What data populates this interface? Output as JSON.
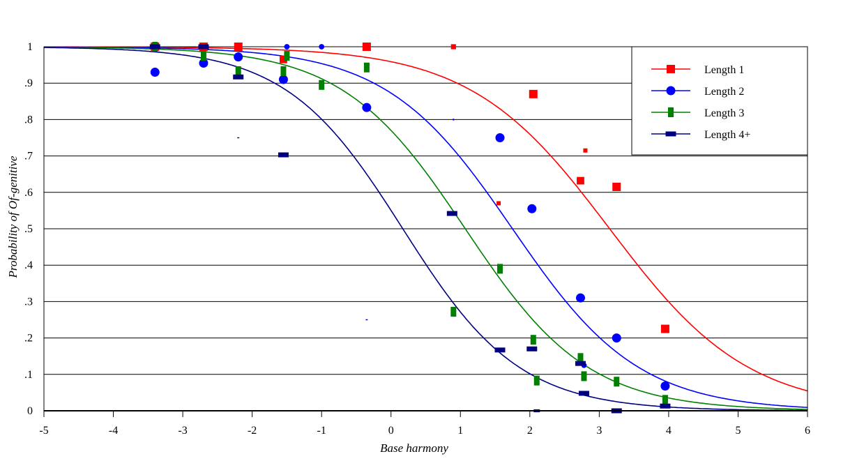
{
  "chart_data": {
    "type": "scatter",
    "title": "",
    "xlabel": "Base harmony",
    "ylabel_parts": [
      "Probability of ",
      "Of-genitive"
    ],
    "ylabel": "Probability of Of-genitive",
    "xlim": [
      -5,
      6
    ],
    "ylim": [
      0,
      1
    ],
    "x_ticks": [
      -5,
      -4,
      -3,
      -2,
      -1,
      0,
      1,
      2,
      3,
      4,
      5,
      6
    ],
    "x_tick_labels": [
      "-5",
      "-4",
      "-3",
      "-2",
      "-1",
      "0",
      "1",
      "2",
      "3",
      "4",
      "5",
      "6"
    ],
    "y_ticks": [
      0,
      0.1,
      0.2,
      0.3,
      0.4,
      0.5,
      0.6,
      0.7,
      0.8,
      0.9,
      1
    ],
    "y_tick_labels": [
      "0",
      ".1",
      ".2",
      ".3",
      ".4",
      ".5",
      ".6",
      ".7",
      ".8",
      ".9",
      "1"
    ],
    "grid": "horizontal",
    "legend_position": "top-right",
    "series": [
      {
        "name": "Length 1",
        "color": "#ff0000",
        "marker": "square",
        "fit": {
          "type": "logistic-decreasing",
          "midpoint": 3.15,
          "slope": 1.0
        },
        "points": [
          [
            -3.4,
            1,
            1
          ],
          [
            -2.7,
            1,
            1
          ],
          [
            -2.2,
            1,
            1
          ],
          [
            -1.55,
            0.965,
            0.9
          ],
          [
            -0.35,
            1,
            1
          ],
          [
            0.9,
            1,
            0.6
          ],
          [
            1.55,
            0.57,
            0.5
          ],
          [
            2.05,
            0.87,
            1
          ],
          [
            2.8,
            0.715,
            0.5
          ],
          [
            2.73,
            0.632,
            0.9
          ],
          [
            3.25,
            0.615,
            1
          ],
          [
            3.95,
            0.225,
            1
          ]
        ]
      },
      {
        "name": "Length 2",
        "color": "#0000ff",
        "marker": "circle",
        "fit": {
          "type": "logistic-decreasing",
          "midpoint": 1.75,
          "slope": 1.1
        },
        "points": [
          [
            -3.4,
            0.93,
            1
          ],
          [
            -2.7,
            0.955,
            1
          ],
          [
            -2.2,
            0.972,
            1
          ],
          [
            -1.55,
            0.91,
            1
          ],
          [
            -1.5,
            1,
            0.6
          ],
          [
            -1.0,
            1,
            0.6
          ],
          [
            -0.35,
            0.833,
            1
          ],
          [
            0.9,
            0.8,
            0.2
          ],
          [
            1.57,
            0.75,
            1
          ],
          [
            2.03,
            0.555,
            1
          ],
          [
            2.73,
            0.31,
            1
          ],
          [
            2.78,
            0.125,
            0.6
          ],
          [
            3.25,
            0.2,
            1
          ],
          [
            3.95,
            0.068,
            1
          ]
        ]
      },
      {
        "name": "Length 3",
        "color": "#008000",
        "marker": "vbar",
        "fit": {
          "type": "logistic-decreasing",
          "midpoint": 1.07,
          "slope": 1.13
        },
        "points": [
          [
            -3.4,
            1,
            1
          ],
          [
            -2.7,
            0.975,
            1
          ],
          [
            -2.2,
            0.933,
            1
          ],
          [
            -1.55,
            0.933,
            1
          ],
          [
            -1.5,
            0.975,
            1
          ],
          [
            -1.0,
            0.895,
            1
          ],
          [
            -0.35,
            0.943,
            1
          ],
          [
            0.9,
            0.272,
            1
          ],
          [
            1.57,
            0.39,
            1
          ],
          [
            2.05,
            0.195,
            1
          ],
          [
            2.1,
            0.083,
            1
          ],
          [
            2.73,
            0.145,
            1
          ],
          [
            2.78,
            0.095,
            1
          ],
          [
            3.25,
            0.08,
            1
          ],
          [
            3.95,
            0.03,
            1
          ]
        ]
      },
      {
        "name": "Length 4+",
        "color": "#000080",
        "marker": "hbar",
        "fit": {
          "type": "logistic-decreasing",
          "midpoint": 0.17,
          "slope": 1.19
        },
        "points": [
          [
            -3.4,
            1,
            1
          ],
          [
            -2.7,
            1,
            1
          ],
          [
            -2.2,
            0.917,
            1
          ],
          [
            -2.2,
            0.75,
            0.2
          ],
          [
            -1.55,
            0.703,
            1
          ],
          [
            -0.35,
            0.25,
            0.2
          ],
          [
            0.88,
            0.542,
            1
          ],
          [
            1.57,
            0.167,
            1
          ],
          [
            2.03,
            0.17,
            1
          ],
          [
            2.1,
            0,
            0.6
          ],
          [
            2.73,
            0.13,
            1
          ],
          [
            2.78,
            0.048,
            1
          ],
          [
            3.25,
            0,
            1
          ],
          [
            3.95,
            0.013,
            1
          ]
        ]
      }
    ]
  }
}
